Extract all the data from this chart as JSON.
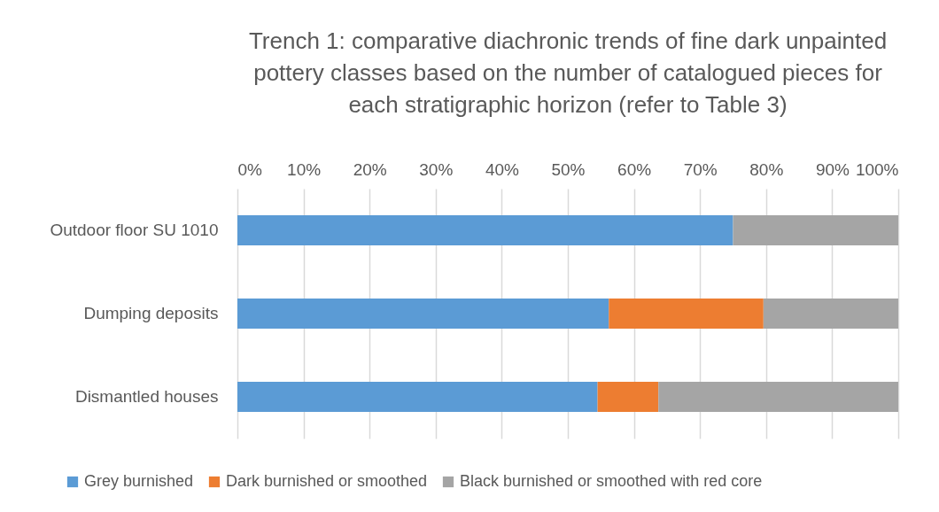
{
  "chart_data": {
    "type": "bar",
    "orientation": "horizontal",
    "stacked": true,
    "title": "Trench 1: comparative diachronic trends of fine dark unpainted pottery classes based on the number of catalogued pieces for each stratigraphic horizon (refer to Table 3)",
    "categories": [
      "Outdoor floor SU 1010",
      "Dumping deposits",
      "Dismantled houses"
    ],
    "series": [
      {
        "name": "Grey burnished",
        "color": "#5b9bd5",
        "values": [
          75,
          56.2,
          54.5
        ]
      },
      {
        "name": "Dark burnished or smoothed",
        "color": "#ed7d31",
        "values": [
          0,
          23.4,
          9.2
        ]
      },
      {
        "name": "Black burnished or smoothed with red core",
        "color": "#a5a5a5",
        "values": [
          25,
          20.4,
          36.3
        ]
      }
    ],
    "xlim": [
      0,
      100
    ],
    "xticks": [
      {
        "value": 0,
        "label": "0%"
      },
      {
        "value": 10,
        "label": "10%"
      },
      {
        "value": 20,
        "label": "20%"
      },
      {
        "value": 30,
        "label": "30%"
      },
      {
        "value": 40,
        "label": "40%"
      },
      {
        "value": 50,
        "label": "50%"
      },
      {
        "value": 60,
        "label": "60%"
      },
      {
        "value": 70,
        "label": "70%"
      },
      {
        "value": 80,
        "label": "80%"
      },
      {
        "value": 90,
        "label": "90%"
      },
      {
        "value": 100,
        "label": "100%"
      }
    ],
    "grid": "x",
    "legend": "bottom"
  }
}
